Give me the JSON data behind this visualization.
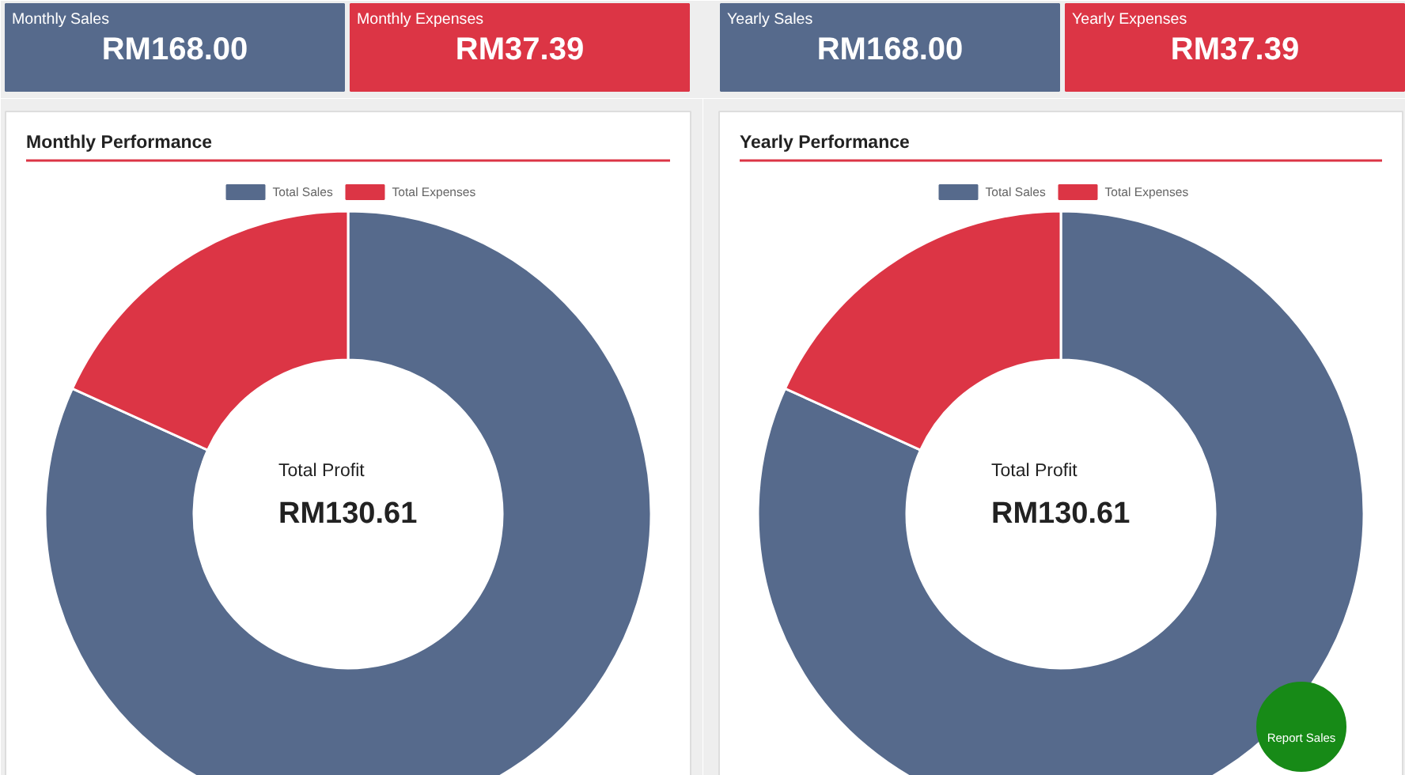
{
  "chart_data": [
    {
      "type": "other",
      "categories": [
        "Monthly Sales",
        "Monthly Expenses",
        "Yearly Sales",
        "Yearly Expenses"
      ],
      "value_labels": [
        "RM168.00",
        "RM37.39",
        "RM168.00",
        "RM37.39"
      ],
      "colors": [
        "#566a8c",
        "#dc3545",
        "#566a8c",
        "#dc3545"
      ]
    },
    {
      "type": "donut",
      "title": "Monthly Performance",
      "categories": [
        "Total Sales",
        "Total Expenses"
      ],
      "values": [
        81.8,
        18.2
      ],
      "colors": [
        "#566a8c",
        "#dc3545"
      ],
      "legend": "top",
      "annotations": [
        "Total Profit",
        "RM130.61"
      ]
    },
    {
      "type": "donut",
      "title": "Yearly Performance",
      "categories": [
        "Total Sales",
        "Total Expenses"
      ],
      "values": [
        81.8,
        18.2
      ],
      "colors": [
        "#566a8c",
        "#dc3545"
      ],
      "legend": "top",
      "annotations": [
        "Total Profit",
        "RM130.61"
      ]
    },
    {
      "type": "other",
      "annotations": [
        "Report Sales"
      ],
      "colors": [
        "#178a17"
      ]
    }
  ]
}
